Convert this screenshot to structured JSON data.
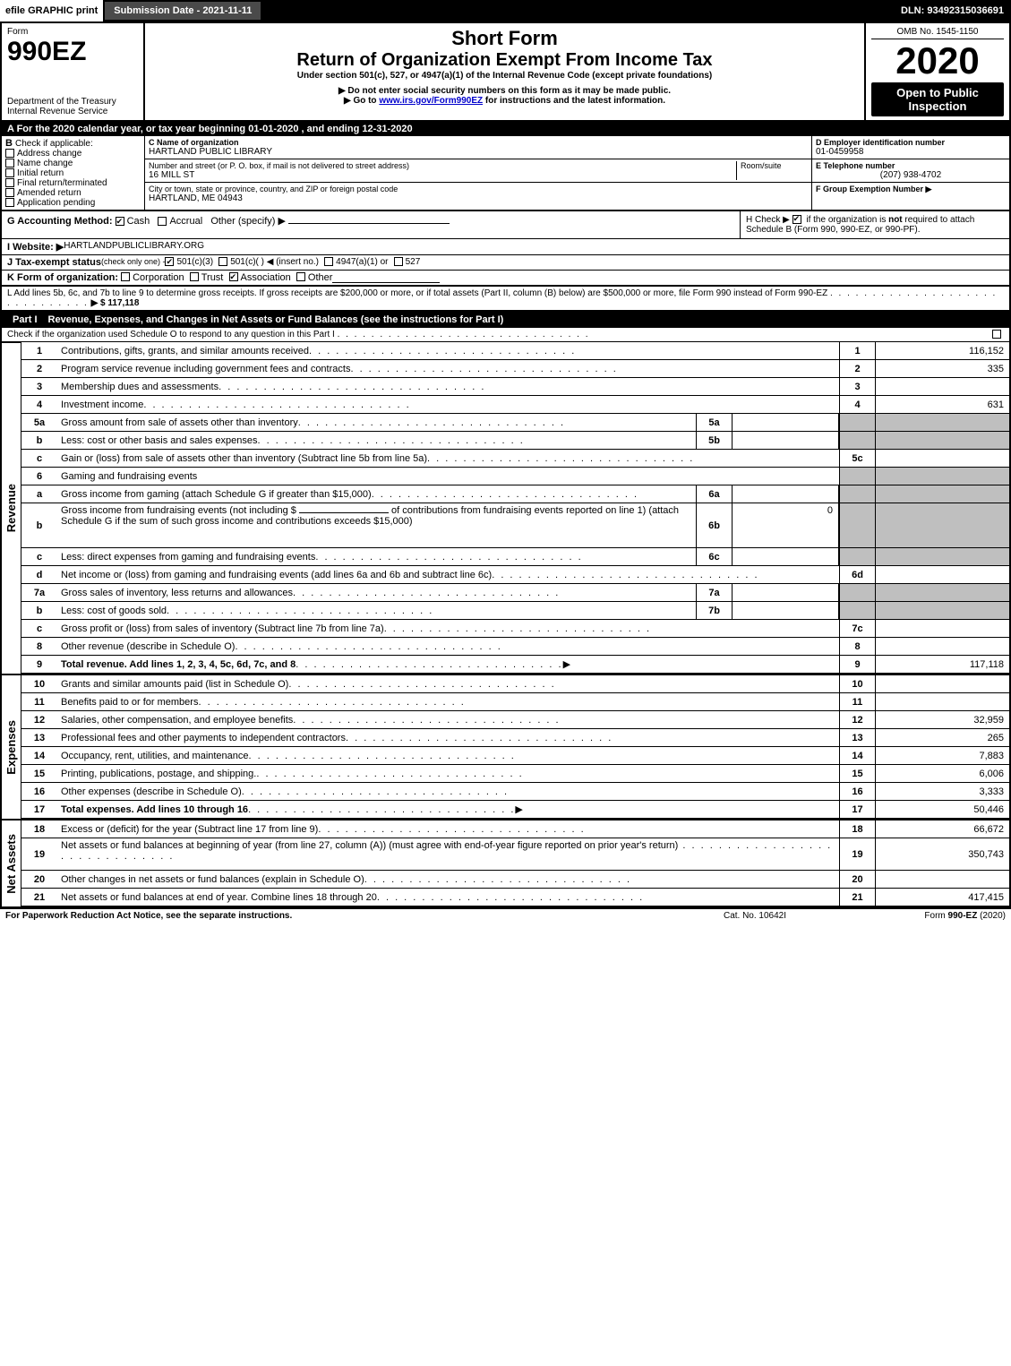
{
  "topbar": {
    "efile": "efile GRAPHIC print",
    "submission": "Submission Date - 2021-11-11",
    "dln": "DLN: 93492315036691"
  },
  "header": {
    "form_word": "Form",
    "form_number": "990EZ",
    "dept": "Department of the Treasury",
    "irs": "Internal Revenue Service",
    "short_form": "Short Form",
    "return_title": "Return of Organization Exempt From Income Tax",
    "under_section": "Under section 501(c), 527, or 4947(a)(1) of the Internal Revenue Code (except private foundations)",
    "ssn_warn": "▶ Do not enter social security numbers on this form as it may be made public.",
    "goto": "▶ Go to ",
    "goto_link": "www.irs.gov/Form990EZ",
    "goto_tail": " for instructions and the latest information.",
    "omb": "OMB No. 1545-1150",
    "year": "2020",
    "open": "Open to Public Inspection"
  },
  "section_a": "A For the 2020 calendar year, or tax year beginning 01-01-2020 , and ending 12-31-2020",
  "section_b": {
    "title": "B",
    "check_label": "Check if applicable:",
    "opts": [
      "Address change",
      "Name change",
      "Initial return",
      "Final return/terminated",
      "Amended return",
      "Application pending"
    ]
  },
  "section_c": {
    "label_c": "C Name of organization",
    "org": "HARTLAND PUBLIC LIBRARY",
    "addr_label": "Number and street (or P. O. box, if mail is not delivered to street address)",
    "room_label": "Room/suite",
    "addr": "16 MILL ST",
    "city_label": "City or town, state or province, country, and ZIP or foreign postal code",
    "city": "HARTLAND, ME  04943"
  },
  "section_d": {
    "d_label": "D Employer identification number",
    "ein": "01-0459958",
    "e_label": "E Telephone number",
    "phone": "(207) 938-4702",
    "f_label": "F Group Exemption Number   ▶"
  },
  "section_g": {
    "label": "G Accounting Method:",
    "cash": "Cash",
    "accrual": "Accrual",
    "other": "Other (specify) ▶"
  },
  "section_h": {
    "text1": "H  Check ▶ ",
    "text2": " if the organization is ",
    "not": "not",
    "text3": " required to attach Schedule B (Form 990, 990-EZ, or 990-PF)."
  },
  "section_i": {
    "label": "I Website: ▶",
    "site": "HARTLANDPUBLICLIBRARY.ORG"
  },
  "section_j": {
    "label": "J Tax-exempt status",
    "tail": "(check only one) - ",
    "o1": "501(c)(3)",
    "o2": "501(c)(   ) ◀ (insert no.)",
    "o3": "4947(a)(1) or",
    "o4": "527"
  },
  "section_k": {
    "label": "K Form of organization:",
    "opts": [
      "Corporation",
      "Trust",
      "Association",
      "Other"
    ]
  },
  "section_l": {
    "text": "L Add lines 5b, 6c, and 7b to line 9 to determine gross receipts. If gross receipts are $200,000 or more, or if total assets (Part II, column (B) below) are $500,000 or more, file Form 990 instead of Form 990-EZ",
    "amount": "▶ $ 117,118"
  },
  "part1": {
    "title": "Part I",
    "heading": "Revenue, Expenses, and Changes in Net Assets or Fund Balances (see the instructions for Part I)",
    "checkline": "Check if the organization used Schedule O to respond to any question in this Part I"
  },
  "sidelabels": {
    "revenue": "Revenue",
    "expenses": "Expenses",
    "netassets": "Net Assets"
  },
  "lines": {
    "1": {
      "n": "1",
      "d": "Contributions, gifts, grants, and similar amounts received",
      "box": "1",
      "v": "116,152"
    },
    "2": {
      "n": "2",
      "d": "Program service revenue including government fees and contracts",
      "box": "2",
      "v": "335"
    },
    "3": {
      "n": "3",
      "d": "Membership dues and assessments",
      "box": "3",
      "v": ""
    },
    "4": {
      "n": "4",
      "d": "Investment income",
      "box": "4",
      "v": "631"
    },
    "5a": {
      "n": "5a",
      "d": "Gross amount from sale of assets other than inventory",
      "ibox": "5a",
      "iv": ""
    },
    "5b": {
      "n": "b",
      "d": "Less: cost or other basis and sales expenses",
      "ibox": "5b",
      "iv": ""
    },
    "5c": {
      "n": "c",
      "d": "Gain or (loss) from sale of assets other than inventory (Subtract line 5b from line 5a)",
      "box": "5c",
      "v": ""
    },
    "6": {
      "n": "6",
      "d": "Gaming and fundraising events"
    },
    "6a": {
      "n": "a",
      "d": "Gross income from gaming (attach Schedule G if greater than $15,000)",
      "ibox": "6a",
      "iv": ""
    },
    "6b": {
      "n": "b",
      "d1": "Gross income from fundraising events (not including $ ",
      "d2": "of contributions from fundraising events reported on line 1) (attach Schedule G if the sum of such gross income and contributions exceeds $15,000)",
      "ibox": "6b",
      "iv": "0"
    },
    "6c": {
      "n": "c",
      "d": "Less: direct expenses from gaming and fundraising events",
      "ibox": "6c",
      "iv": ""
    },
    "6d": {
      "n": "d",
      "d": "Net income or (loss) from gaming and fundraising events (add lines 6a and 6b and subtract line 6c)",
      "box": "6d",
      "v": ""
    },
    "7a": {
      "n": "7a",
      "d": "Gross sales of inventory, less returns and allowances",
      "ibox": "7a",
      "iv": ""
    },
    "7b": {
      "n": "b",
      "d": "Less: cost of goods sold",
      "ibox": "7b",
      "iv": ""
    },
    "7c": {
      "n": "c",
      "d": "Gross profit or (loss) from sales of inventory (Subtract line 7b from line 7a)",
      "box": "7c",
      "v": ""
    },
    "8": {
      "n": "8",
      "d": "Other revenue (describe in Schedule O)",
      "box": "8",
      "v": ""
    },
    "9": {
      "n": "9",
      "d": "Total revenue. Add lines 1, 2, 3, 4, 5c, 6d, 7c, and 8",
      "box": "9",
      "v": "117,118",
      "arrow": true,
      "bold": true
    },
    "10": {
      "n": "10",
      "d": "Grants and similar amounts paid (list in Schedule O)",
      "box": "10",
      "v": ""
    },
    "11": {
      "n": "11",
      "d": "Benefits paid to or for members",
      "box": "11",
      "v": ""
    },
    "12": {
      "n": "12",
      "d": "Salaries, other compensation, and employee benefits",
      "box": "12",
      "v": "32,959"
    },
    "13": {
      "n": "13",
      "d": "Professional fees and other payments to independent contractors",
      "box": "13",
      "v": "265"
    },
    "14": {
      "n": "14",
      "d": "Occupancy, rent, utilities, and maintenance",
      "box": "14",
      "v": "7,883"
    },
    "15": {
      "n": "15",
      "d": "Printing, publications, postage, and shipping.",
      "box": "15",
      "v": "6,006"
    },
    "16": {
      "n": "16",
      "d": "Other expenses (describe in Schedule O)",
      "box": "16",
      "v": "3,333"
    },
    "17": {
      "n": "17",
      "d": "Total expenses. Add lines 10 through 16",
      "box": "17",
      "v": "50,446",
      "arrow": true,
      "bold": true
    },
    "18": {
      "n": "18",
      "d": "Excess or (deficit) for the year (Subtract line 17 from line 9)",
      "box": "18",
      "v": "66,672"
    },
    "19": {
      "n": "19",
      "d": "Net assets or fund balances at beginning of year (from line 27, column (A)) (must agree with end-of-year figure reported on prior year's return)",
      "box": "19",
      "v": "350,743"
    },
    "20": {
      "n": "20",
      "d": "Other changes in net assets or fund balances (explain in Schedule O)",
      "box": "20",
      "v": ""
    },
    "21": {
      "n": "21",
      "d": "Net assets or fund balances at end of year. Combine lines 18 through 20",
      "box": "21",
      "v": "417,415"
    }
  },
  "footer": {
    "left": "For Paperwork Reduction Act Notice, see the separate instructions.",
    "mid": "Cat. No. 10642I",
    "right": "Form 990-EZ (2020)"
  },
  "colors": {
    "black": "#000000",
    "white": "#ffffff",
    "shaded": "#bfbfbf",
    "link": "#0000cc",
    "darkgrey": "#4a4a4a"
  }
}
